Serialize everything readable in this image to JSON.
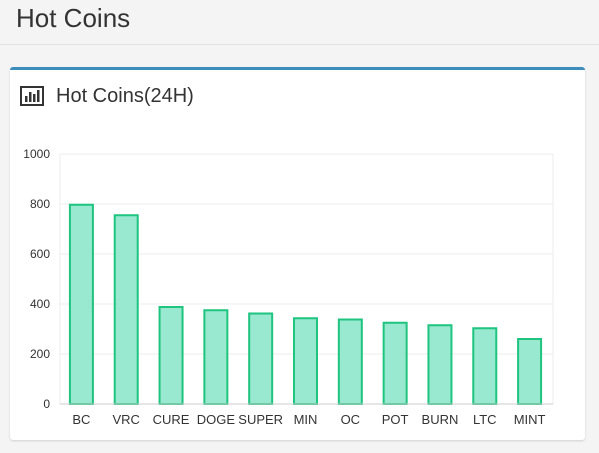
{
  "page": {
    "title": "Hot Coins"
  },
  "panel": {
    "title": "Hot Coins(24H)",
    "icon": "bar-chart-icon"
  },
  "colors": {
    "bar_fill": "#99e8d0",
    "bar_stroke": "#1ec47f",
    "accent": "#3c8dbc",
    "grid": "#ececec",
    "axis_text": "#333333"
  },
  "chart_data": {
    "type": "bar",
    "categories": [
      "BC",
      "VRC",
      "CURE",
      "DOGE",
      "SUPER",
      "MIN",
      "OC",
      "POT",
      "BURN",
      "LTC",
      "MINT"
    ],
    "values": [
      797,
      755,
      388,
      375,
      362,
      343,
      338,
      325,
      315,
      303,
      260
    ],
    "yticks": [
      0,
      200,
      400,
      600,
      800,
      1000
    ],
    "ylim": [
      0,
      1000
    ],
    "grid": true,
    "title": "",
    "xlabel": "",
    "ylabel": ""
  }
}
